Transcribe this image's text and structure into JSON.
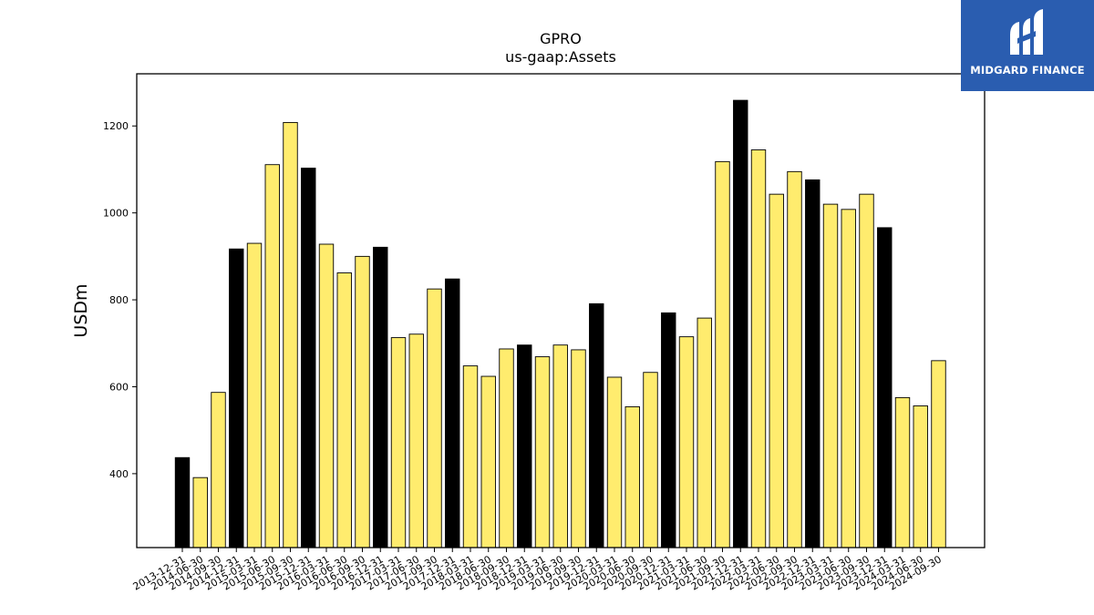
{
  "brand": {
    "name": "MIDGARD FINANCE",
    "bg_color": "#2a5db0",
    "icon": "midgard-logo-icon"
  },
  "chart_data": {
    "type": "bar",
    "title": "GPRO",
    "subtitle": "us-gaap:Assets",
    "xlabel": "",
    "ylabel": "USDm",
    "ylim": [
      230,
      1320
    ],
    "yticks": [
      400,
      600,
      800,
      1000,
      1200
    ],
    "grid": false,
    "colors": {
      "q4": "#000000",
      "other": "#ffec6e",
      "edge": "#000000"
    },
    "categories": [
      "2013-12-31",
      "2014-06-30",
      "2014-09-30",
      "2014-12-31",
      "2015-03-31",
      "2015-06-30",
      "2015-09-30",
      "2015-12-31",
      "2016-03-31",
      "2016-06-30",
      "2016-09-30",
      "2016-12-31",
      "2017-03-31",
      "2017-06-30",
      "2017-09-30",
      "2017-12-31",
      "2018-03-31",
      "2018-06-30",
      "2018-09-30",
      "2018-12-31",
      "2019-03-31",
      "2019-06-30",
      "2019-09-30",
      "2019-12-31",
      "2020-03-31",
      "2020-06-30",
      "2020-09-30",
      "2020-12-31",
      "2021-03-31",
      "2021-06-30",
      "2021-09-30",
      "2021-12-31",
      "2022-03-31",
      "2022-06-30",
      "2022-09-30",
      "2022-12-31",
      "2023-03-31",
      "2023-06-30",
      "2023-09-30",
      "2023-12-31",
      "2024-03-31",
      "2024-06-30",
      "2024-09-30"
    ],
    "values": [
      437,
      391,
      587,
      917,
      930,
      1111,
      1208,
      1103,
      928,
      862,
      900,
      921,
      713,
      721,
      825,
      848,
      648,
      624,
      687,
      696,
      669,
      696,
      685,
      791,
      622,
      554,
      633,
      770,
      715,
      758,
      1118,
      1259,
      1145,
      1043,
      1095,
      1076,
      1020,
      1008,
      1043,
      966,
      575,
      556,
      660
    ]
  }
}
